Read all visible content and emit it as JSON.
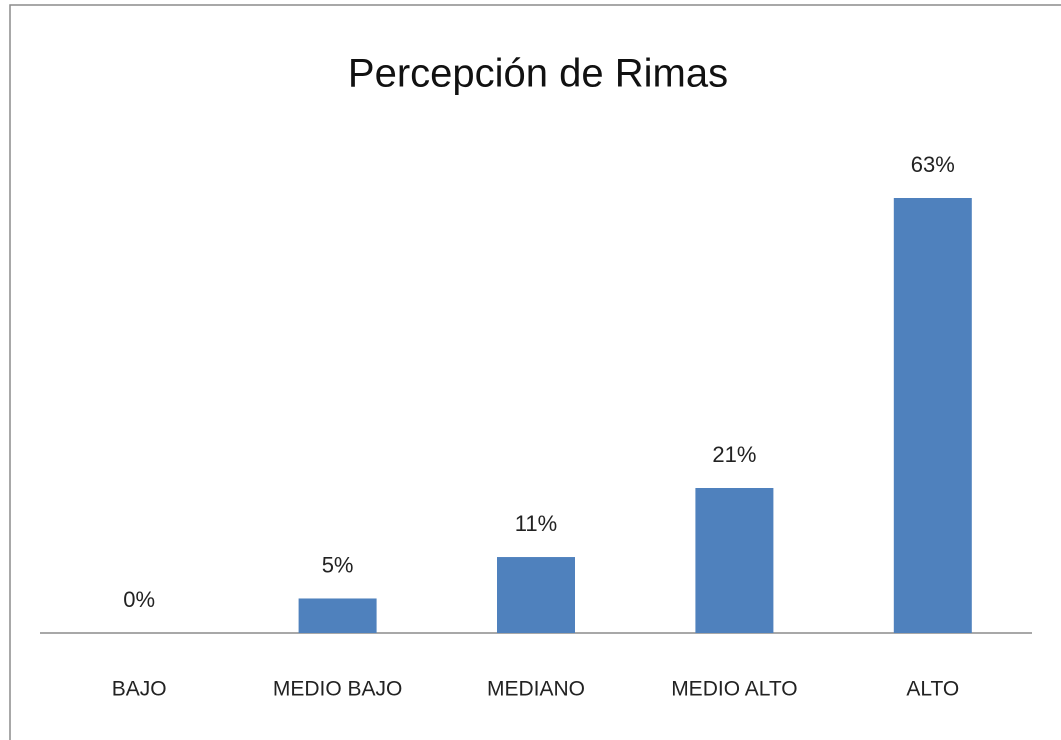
{
  "chart_data": {
    "type": "bar",
    "title": "Percepción de Rimas",
    "categories": [
      "BAJO",
      "MEDIO BAJO",
      "MEDIANO",
      "MEDIO ALTO",
      "ALTO"
    ],
    "values": [
      0,
      5,
      11,
      21,
      63
    ],
    "value_labels": [
      "0%",
      "5%",
      "11%",
      "21%",
      "63%"
    ],
    "color": "#4f81bd"
  }
}
